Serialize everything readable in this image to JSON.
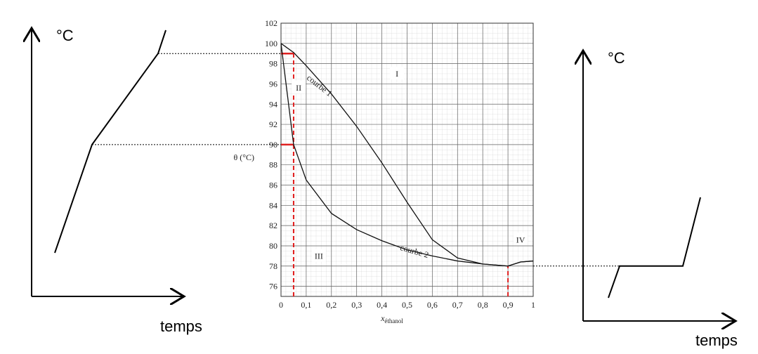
{
  "chart_data": {
    "type": "line",
    "ylabel": "θ (°C)",
    "xlabel": "x",
    "xlabel_sub": "éthanol",
    "x": [
      0,
      0.05,
      0.1,
      0.2,
      0.3,
      0.4,
      0.5,
      0.6,
      0.7,
      0.8,
      0.9,
      0.95,
      1
    ],
    "series": [
      {
        "name": "courbe 1",
        "color": "#111111",
        "values": [
          100,
          99.1,
          97.8,
          95,
          91.8,
          88.2,
          84.3,
          80.6,
          78.8,
          78.2,
          78,
          78.4,
          78.5
        ]
      },
      {
        "name": "courbe 2",
        "color": "#111111",
        "values": [
          100,
          90,
          86.5,
          83.2,
          81.6,
          80.5,
          79.6,
          79,
          78.5,
          78.2,
          78,
          78.4,
          78.5
        ]
      }
    ],
    "xlim": [
      0,
      1
    ],
    "ylim": [
      75,
      102
    ],
    "xticks": [
      0,
      {
        "value": 0.1,
        "label": "0,1"
      },
      {
        "value": 0.2,
        "label": "0,2"
      },
      {
        "value": 0.3,
        "label": "0,3"
      },
      {
        "value": 0.4,
        "label": "0,4"
      },
      {
        "value": 0.5,
        "label": "0,5"
      },
      {
        "value": 0.6,
        "label": "0,6"
      },
      {
        "value": 0.7,
        "label": "0,7"
      },
      {
        "value": 0.8,
        "label": "0,8"
      },
      {
        "value": 0.9,
        "label": "0,9"
      },
      1
    ],
    "yticks": [
      76,
      78,
      80,
      82,
      84,
      86,
      88,
      90,
      92,
      94,
      96,
      98,
      100,
      102
    ],
    "grid": true,
    "regions": [
      "I",
      "II",
      "III",
      "IV"
    ],
    "markers": [
      {
        "x": 0.05,
        "y": 99,
        "horizontal": true
      },
      {
        "x": 0.05,
        "y": 90,
        "horizontal": true
      },
      {
        "x": 0.9,
        "y": 78,
        "horizontal": false
      }
    ],
    "marker_color": "#e02020"
  },
  "left_diagram": {
    "ylabel": "°C",
    "xlabel": "temps"
  },
  "right_diagram": {
    "ylabel": "°C",
    "xlabel": "temps"
  }
}
